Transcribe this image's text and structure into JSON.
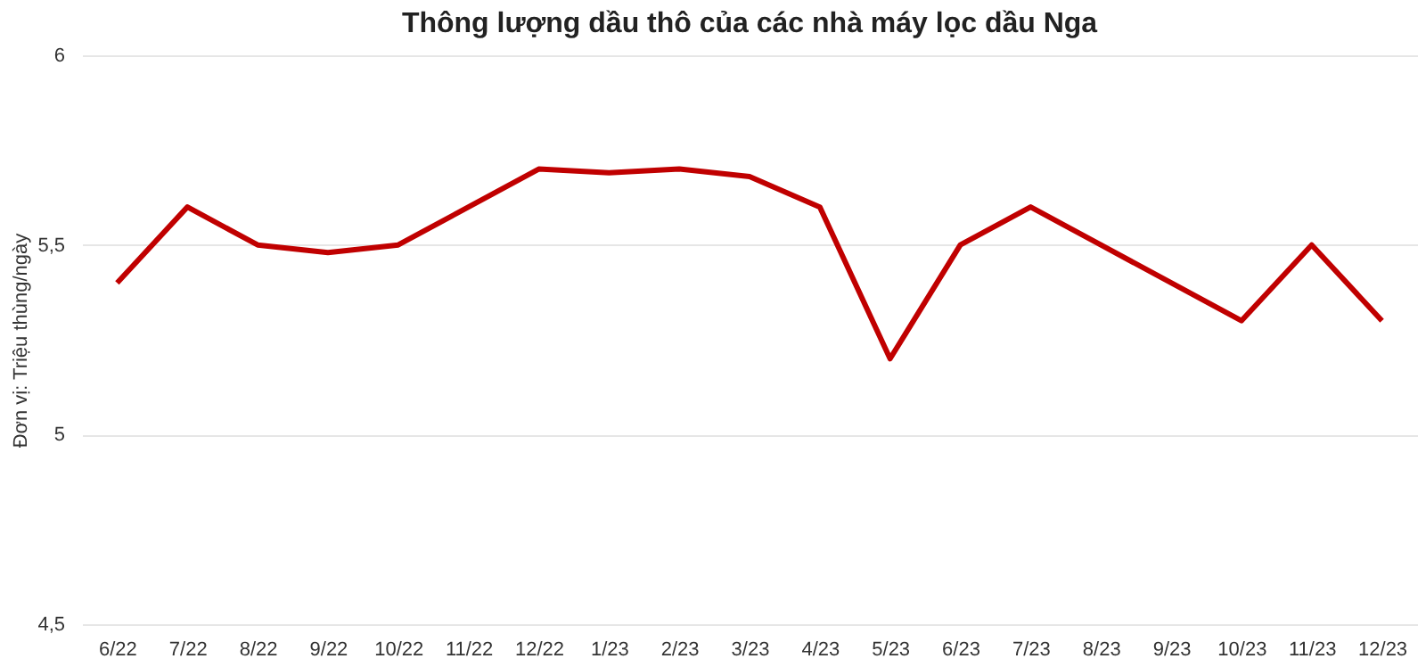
{
  "chart_data": {
    "type": "line",
    "title": "Thông lượng dầu thô của các nhà máy lọc dầu Nga",
    "ylabel": "Đơn vị: Triệu thùng/ngày",
    "categories": [
      "6/22",
      "7/22",
      "8/22",
      "9/22",
      "10/22",
      "11/22",
      "12/22",
      "1/23",
      "2/23",
      "3/23",
      "4/23",
      "5/23",
      "6/23",
      "7/23",
      "8/23",
      "9/23",
      "10/23",
      "11/23",
      "12/23"
    ],
    "series": [
      {
        "color": "#c00000",
        "values": [
          5.4,
          5.6,
          5.5,
          5.48,
          5.5,
          5.6,
          5.7,
          5.69,
          5.7,
          5.68,
          5.6,
          5.2,
          5.5,
          5.6,
          5.5,
          5.4,
          5.3,
          5.5,
          5.3
        ]
      }
    ],
    "ylim": [
      4.5,
      6
    ],
    "yticks": [
      {
        "value": 4.5,
        "label": "4,5"
      },
      5,
      {
        "value": 5.5,
        "label": "5,5"
      },
      6
    ],
    "grid": "y",
    "marker": "none",
    "line_style": "solid"
  }
}
